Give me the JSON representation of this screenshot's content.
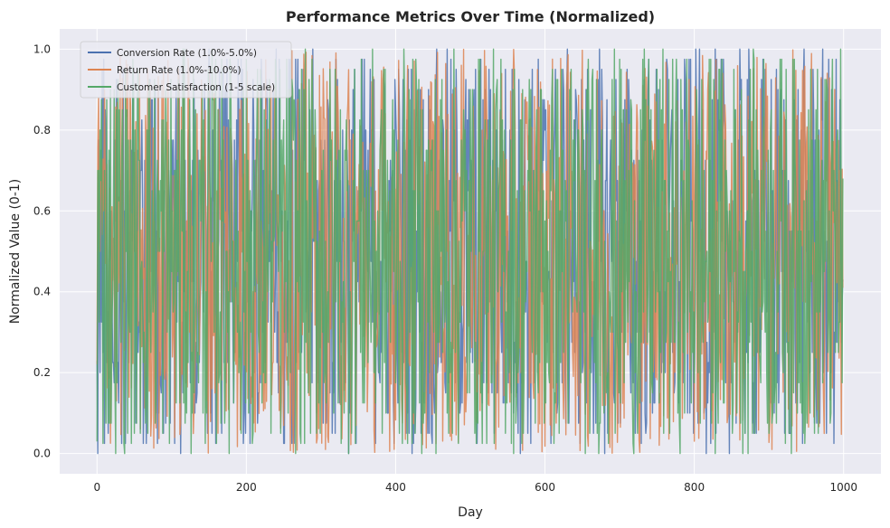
{
  "chart_data": {
    "type": "line",
    "title": "Performance Metrics Over Time (Normalized)",
    "xlabel": "Day",
    "ylabel": "Normalized Value (0-1)",
    "xlim": [
      -50,
      1050
    ],
    "ylim": [
      -0.05,
      1.05
    ],
    "xticks": [
      0,
      200,
      400,
      600,
      800,
      1000
    ],
    "yticks": [
      0.0,
      0.2,
      0.4,
      0.6,
      0.8,
      1.0
    ],
    "xtick_labels": [
      "0",
      "200",
      "400",
      "600",
      "800",
      "1000"
    ],
    "ytick_labels": [
      "0.0",
      "0.2",
      "0.4",
      "0.6",
      "0.8",
      "1.0"
    ],
    "grid": true,
    "legend_position": "top-left",
    "x_range": [
      0,
      999
    ],
    "series": [
      {
        "name": "Conversion Rate (1.0%-5.0%)",
        "color": "#4C72B0",
        "first": 0.23,
        "last": 0.43
      },
      {
        "name": "Return Rate (1.0%-10.0%)",
        "color": "#DD8452",
        "first": 0.22,
        "last": 0.41
      },
      {
        "name": "Customer Satisfaction (1-5 scale)",
        "color": "#55A868",
        "first": 0.03,
        "last": 0.68
      }
    ],
    "colors": {
      "background": "#EAEAF2",
      "grid": "#ffffff"
    }
  }
}
